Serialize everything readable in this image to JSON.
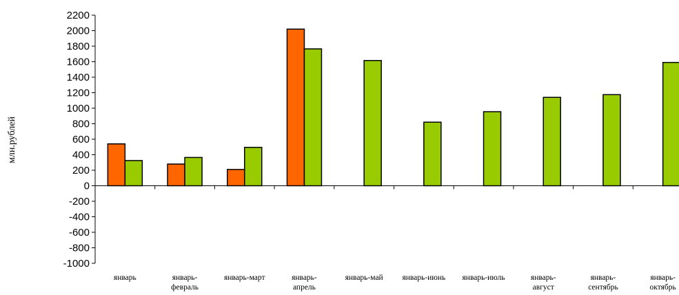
{
  "chart_data": {
    "type": "bar",
    "title": "",
    "xlabel": "",
    "ylabel": "млн.рублей",
    "ylim": [
      -1000,
      2200
    ],
    "ytick_step": 200,
    "grid": false,
    "legend": "none",
    "categories": [
      [
        "январь"
      ],
      [
        "январь-",
        "февраль"
      ],
      [
        "январь-март"
      ],
      [
        "январь-",
        "апрель"
      ],
      [
        "январь-май"
      ],
      [
        "январь-июнь"
      ],
      [
        "январь-июль"
      ],
      [
        "январь-",
        "август"
      ],
      [
        "январь-",
        "сентябрь"
      ],
      [
        "январь-",
        "октябрь"
      ]
    ],
    "series": [
      {
        "color": "#FF6600",
        "values": [
          540,
          280,
          210,
          2020,
          null,
          null,
          null,
          null,
          null,
          null
        ]
      },
      {
        "color": "#99CC00",
        "values": [
          325,
          365,
          495,
          1765,
          1615,
          820,
          955,
          1140,
          1175,
          1590
        ]
      }
    ]
  }
}
